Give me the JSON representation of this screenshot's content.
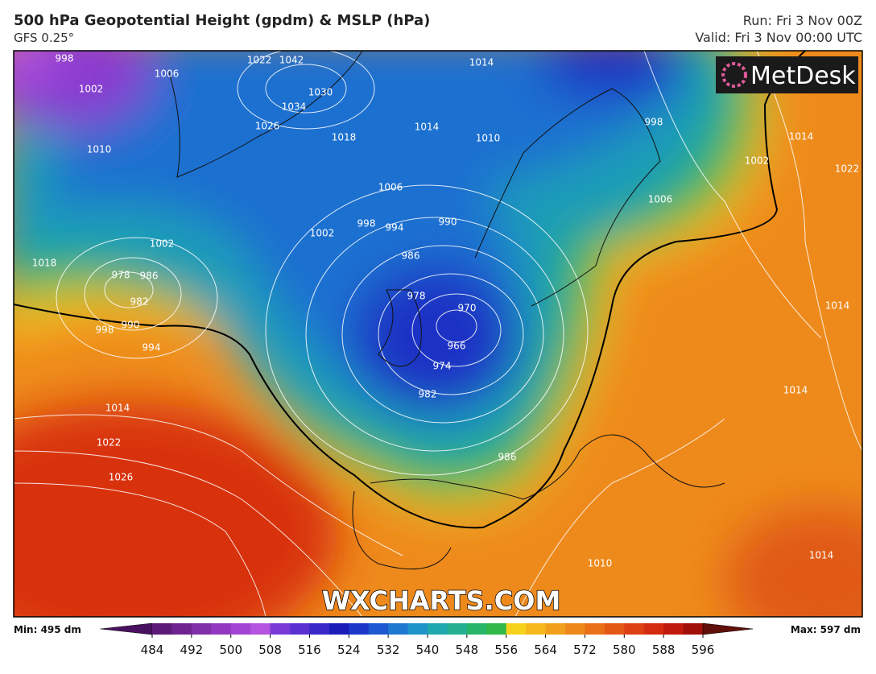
{
  "header": {
    "title": "500 hPa Geopotential Height (gpdm) & MSLP (hPa)",
    "subtitle": "GFS 0.25°",
    "run": "Run: Fri 3 Nov 00Z",
    "valid": "Valid: Fri 3 Nov 00:00 UTC"
  },
  "logo": "MetDesk",
  "watermark": "WXCHARTS.COM",
  "colorbar": {
    "min_label": "Min: 495 dm",
    "max_label": "Max: 597 dm",
    "ticks": [
      484,
      492,
      500,
      508,
      516,
      524,
      532,
      540,
      548,
      556,
      564,
      572,
      580,
      588,
      596
    ],
    "colors": [
      "#4a1060",
      "#5c1a78",
      "#6e2490",
      "#8030a8",
      "#9238c0",
      "#a444d4",
      "#b454e0",
      "#7a3ad8",
      "#5a30d0",
      "#3a28c8",
      "#1c1cb8",
      "#1c38c8",
      "#1e58d0",
      "#1e78d0",
      "#1e94c8",
      "#20a8b0",
      "#22b090",
      "#26b468",
      "#30b848",
      "#f6d21c",
      "#f6b81c",
      "#f2a01c",
      "#ee881a",
      "#ea7018",
      "#e45816",
      "#dc4012",
      "#d42a10",
      "#c01a0c",
      "#a01008",
      "#601008"
    ]
  },
  "isobar_labels": [
    "998",
    "1002",
    "1006",
    "1022",
    "1042",
    "1026",
    "1034",
    "1030",
    "1018",
    "1014",
    "1010",
    "1006",
    "1002",
    "998",
    "994",
    "990",
    "986",
    "978",
    "986",
    "982",
    "990",
    "994",
    "998",
    "1002",
    "1010",
    "1018",
    "1014",
    "1022",
    "1026",
    "978",
    "970",
    "966",
    "974",
    "982",
    "986",
    "1014",
    "998",
    "1006",
    "1002",
    "1014",
    "1022",
    "1014",
    "1014",
    "1010",
    "1014"
  ]
}
